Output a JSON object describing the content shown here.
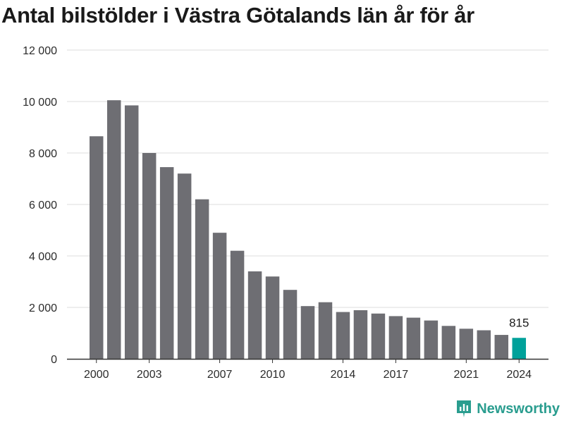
{
  "title": "Antal bilstölder i Västra Götalands län år för år",
  "brand": {
    "name": "Newsworthy",
    "color": "#2a9d8f"
  },
  "colors": {
    "bar": "#6e6e73",
    "highlight": "#00a19a",
    "grid": "#dcdcdc",
    "axis": "#333333"
  },
  "chart_data": {
    "type": "bar",
    "title": "Antal bilstölder i Västra Götalands län år för år",
    "xlabel": "",
    "ylabel": "",
    "ylim": [
      0,
      12000
    ],
    "yticks": [
      0,
      2000,
      4000,
      6000,
      8000,
      10000,
      12000
    ],
    "ytick_labels": [
      "0",
      "2 000",
      "4 000",
      "6 000",
      "8 000",
      "10 000",
      "12 000"
    ],
    "xtick_labels": [
      "2000",
      "2003",
      "2007",
      "2010",
      "2014",
      "2017",
      "2021",
      "2024"
    ],
    "grid": true,
    "categories": [
      2000,
      2001,
      2002,
      2003,
      2004,
      2005,
      2006,
      2007,
      2008,
      2009,
      2010,
      2011,
      2012,
      2013,
      2014,
      2015,
      2016,
      2017,
      2018,
      2019,
      2020,
      2021,
      2022,
      2023,
      2024
    ],
    "values": [
      8650,
      10050,
      9850,
      8000,
      7450,
      7200,
      6200,
      4900,
      4200,
      3400,
      3200,
      2680,
      2050,
      2200,
      1820,
      1890,
      1760,
      1660,
      1600,
      1490,
      1280,
      1170,
      1110,
      930,
      815
    ],
    "highlight": {
      "category": 2024,
      "label": "815"
    }
  }
}
